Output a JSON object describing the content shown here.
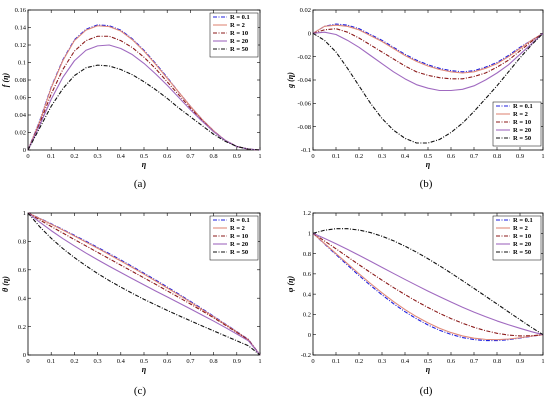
{
  "chart_data": [
    {
      "type": "line",
      "panel_label": "(a)",
      "xlabel": "η",
      "ylabel": "f (η)",
      "xlim": [
        0,
        1
      ],
      "ylim": [
        0,
        0.16
      ],
      "xticks": [
        0,
        0.1,
        0.2,
        0.3,
        0.4,
        0.5,
        0.6,
        0.7,
        0.8,
        0.9,
        1
      ],
      "xtick_labels": [
        "0",
        "0.1",
        "0.2",
        "0.3",
        "0.4",
        "0.5",
        "0.6",
        "0.7",
        "0.8",
        "0.9",
        "1"
      ],
      "yticks": [
        0,
        0.02,
        0.04,
        0.06,
        0.08,
        0.1,
        0.12,
        0.14,
        0.16
      ],
      "ytick_labels": [
        "0",
        "0.02",
        "0.04",
        "0.06",
        "0.08",
        "0.1",
        "0.12",
        "0.14",
        "0.16"
      ],
      "legend_position": "top-right",
      "x": [
        0,
        0.05,
        0.1,
        0.15,
        0.2,
        0.25,
        0.3,
        0.35,
        0.4,
        0.45,
        0.5,
        0.55,
        0.6,
        0.65,
        0.7,
        0.75,
        0.8,
        0.85,
        0.9,
        0.95,
        1
      ],
      "series": [
        {
          "name": "R = 0.1",
          "color": "#1f1fdd",
          "dash": "dashdot",
          "values": [
            0,
            0.033,
            0.072,
            0.103,
            0.126,
            0.138,
            0.143,
            0.142,
            0.137,
            0.127,
            0.114,
            0.099,
            0.083,
            0.066,
            0.05,
            0.035,
            0.022,
            0.011,
            0.004,
            0.001,
            0
          ]
        },
        {
          "name": "R = 2",
          "color": "#e08a7a",
          "dash": "solid",
          "values": [
            0,
            0.032,
            0.071,
            0.102,
            0.125,
            0.137,
            0.142,
            0.141,
            0.136,
            0.126,
            0.113,
            0.098,
            0.082,
            0.066,
            0.05,
            0.035,
            0.022,
            0.011,
            0.004,
            0.001,
            0
          ]
        },
        {
          "name": "R = 10",
          "color": "#8b1a1a",
          "dash": "dashdot",
          "values": [
            0,
            0.03,
            0.064,
            0.092,
            0.113,
            0.125,
            0.13,
            0.13,
            0.125,
            0.117,
            0.106,
            0.093,
            0.078,
            0.063,
            0.048,
            0.034,
            0.021,
            0.011,
            0.004,
            0.001,
            0
          ]
        },
        {
          "name": "R = 20",
          "color": "#a06ac0",
          "dash": "solid",
          "values": [
            0,
            0.028,
            0.058,
            0.083,
            0.102,
            0.114,
            0.119,
            0.12,
            0.116,
            0.109,
            0.099,
            0.087,
            0.074,
            0.06,
            0.046,
            0.033,
            0.021,
            0.011,
            0.004,
            0.001,
            0
          ]
        },
        {
          "name": "R = 50",
          "color": "#111111",
          "dash": "dashdot",
          "values": [
            0,
            0.025,
            0.05,
            0.07,
            0.085,
            0.094,
            0.097,
            0.096,
            0.092,
            0.086,
            0.078,
            0.069,
            0.059,
            0.048,
            0.038,
            0.028,
            0.018,
            0.01,
            0.004,
            0.001,
            0
          ]
        }
      ]
    },
    {
      "type": "line",
      "panel_label": "(b)",
      "xlabel": "η",
      "ylabel": "g (η)",
      "xlim": [
        0,
        1
      ],
      "ylim": [
        -0.1,
        0.02
      ],
      "xticks": [
        0,
        0.1,
        0.2,
        0.3,
        0.4,
        0.5,
        0.6,
        0.7,
        0.8,
        0.9,
        1
      ],
      "xtick_labels": [
        "0",
        "0.1",
        "0.2",
        "0.3",
        "0.4",
        "0.5",
        "0.6",
        "0.7",
        "0.8",
        "0.9",
        "1"
      ],
      "yticks": [
        -0.1,
        -0.08,
        -0.06,
        -0.04,
        -0.02,
        0,
        0.02
      ],
      "ytick_labels": [
        "-0.1",
        "-0.08",
        "-0.06",
        "-0.04",
        "-0.02",
        "0",
        "0.02"
      ],
      "legend_position": "bottom-right",
      "x": [
        0,
        0.05,
        0.1,
        0.15,
        0.2,
        0.25,
        0.3,
        0.35,
        0.4,
        0.45,
        0.5,
        0.55,
        0.6,
        0.65,
        0.7,
        0.75,
        0.8,
        0.85,
        0.9,
        0.95,
        1
      ],
      "series": [
        {
          "name": "R = 0.1",
          "color": "#1f1fdd",
          "dash": "dashdot",
          "values": [
            0,
            0.006,
            0.008,
            0.007,
            0.004,
            -0.001,
            -0.006,
            -0.012,
            -0.018,
            -0.023,
            -0.027,
            -0.03,
            -0.032,
            -0.033,
            -0.032,
            -0.029,
            -0.025,
            -0.019,
            -0.012,
            -0.006,
            0
          ]
        },
        {
          "name": "R = 2",
          "color": "#e08a7a",
          "dash": "solid",
          "values": [
            0,
            0.006,
            0.007,
            0.006,
            0.003,
            -0.002,
            -0.007,
            -0.013,
            -0.019,
            -0.024,
            -0.028,
            -0.031,
            -0.033,
            -0.034,
            -0.033,
            -0.03,
            -0.026,
            -0.02,
            -0.013,
            -0.006,
            0
          ]
        },
        {
          "name": "R = 10",
          "color": "#8b1a1a",
          "dash": "dashdot",
          "values": [
            0,
            0.003,
            0.004,
            0.001,
            -0.004,
            -0.01,
            -0.016,
            -0.022,
            -0.028,
            -0.033,
            -0.036,
            -0.038,
            -0.039,
            -0.039,
            -0.037,
            -0.034,
            -0.029,
            -0.023,
            -0.015,
            -0.007,
            0
          ]
        },
        {
          "name": "R = 20",
          "color": "#a06ac0",
          "dash": "solid",
          "values": [
            0,
            0.001,
            -0.001,
            -0.006,
            -0.012,
            -0.019,
            -0.026,
            -0.033,
            -0.039,
            -0.044,
            -0.047,
            -0.049,
            -0.049,
            -0.048,
            -0.045,
            -0.04,
            -0.034,
            -0.027,
            -0.018,
            -0.009,
            0
          ]
        },
        {
          "name": "R = 50",
          "color": "#111111",
          "dash": "dashdot",
          "values": [
            0,
            -0.006,
            -0.016,
            -0.03,
            -0.045,
            -0.06,
            -0.073,
            -0.083,
            -0.09,
            -0.094,
            -0.094,
            -0.091,
            -0.085,
            -0.077,
            -0.067,
            -0.056,
            -0.045,
            -0.033,
            -0.021,
            -0.01,
            0
          ]
        }
      ]
    },
    {
      "type": "line",
      "panel_label": "(c)",
      "xlabel": "η",
      "ylabel": "θ (η)",
      "xlim": [
        0,
        1
      ],
      "ylim": [
        0,
        1
      ],
      "xticks": [
        0,
        0.1,
        0.2,
        0.3,
        0.4,
        0.5,
        0.6,
        0.7,
        0.8,
        0.9,
        1
      ],
      "xtick_labels": [
        "0",
        "0.1",
        "0.2",
        "0.3",
        "0.4",
        "0.5",
        "0.6",
        "0.7",
        "0.8",
        "0.9",
        "1"
      ],
      "yticks": [
        0,
        0.2,
        0.4,
        0.6,
        0.8,
        1
      ],
      "ytick_labels": [
        "0",
        "0.2",
        "0.4",
        "0.6",
        "0.8",
        "1"
      ],
      "legend_position": "top-right",
      "x": [
        0,
        0.05,
        0.1,
        0.15,
        0.2,
        0.25,
        0.3,
        0.35,
        0.4,
        0.45,
        0.5,
        0.55,
        0.6,
        0.65,
        0.7,
        0.75,
        0.8,
        0.85,
        0.9,
        0.95,
        1
      ],
      "series": [
        {
          "name": "R = 0.1",
          "color": "#1f1fdd",
          "dash": "dashdot",
          "values": [
            1,
            0.963,
            0.924,
            0.884,
            0.843,
            0.801,
            0.758,
            0.714,
            0.669,
            0.623,
            0.576,
            0.528,
            0.479,
            0.429,
            0.378,
            0.326,
            0.273,
            0.219,
            0.165,
            0.11,
            0
          ]
        },
        {
          "name": "R = 2",
          "color": "#e08a7a",
          "dash": "solid",
          "values": [
            1,
            0.961,
            0.921,
            0.88,
            0.838,
            0.795,
            0.752,
            0.707,
            0.662,
            0.616,
            0.569,
            0.521,
            0.472,
            0.423,
            0.372,
            0.321,
            0.269,
            0.216,
            0.162,
            0.108,
            0
          ]
        },
        {
          "name": "R = 10",
          "color": "#8b1a1a",
          "dash": "dashdot",
          "values": [
            1,
            0.952,
            0.905,
            0.859,
            0.813,
            0.768,
            0.723,
            0.678,
            0.633,
            0.588,
            0.543,
            0.498,
            0.452,
            0.406,
            0.359,
            0.311,
            0.262,
            0.211,
            0.159,
            0.106,
            0
          ]
        },
        {
          "name": "R = 20",
          "color": "#a06ac0",
          "dash": "solid",
          "values": [
            1,
            0.936,
            0.876,
            0.82,
            0.768,
            0.718,
            0.671,
            0.625,
            0.581,
            0.537,
            0.494,
            0.451,
            0.409,
            0.367,
            0.325,
            0.282,
            0.239,
            0.194,
            0.148,
            0.1,
            0
          ]
        },
        {
          "name": "R = 50",
          "color": "#111111",
          "dash": "dashdot",
          "values": [
            1,
            0.904,
            0.822,
            0.75,
            0.686,
            0.628,
            0.574,
            0.524,
            0.478,
            0.434,
            0.392,
            0.353,
            0.314,
            0.277,
            0.241,
            0.205,
            0.17,
            0.135,
            0.1,
            0.065,
            0
          ]
        }
      ]
    },
    {
      "type": "line",
      "panel_label": "(d)",
      "xlabel": "η",
      "ylabel": "φ (η)",
      "xlim": [
        0,
        1
      ],
      "ylim": [
        -0.2,
        1.2
      ],
      "xticks": [
        0,
        0.1,
        0.2,
        0.3,
        0.4,
        0.5,
        0.6,
        0.7,
        0.8,
        0.9,
        1
      ],
      "xtick_labels": [
        "0",
        "0.1",
        "0.2",
        "0.3",
        "0.4",
        "0.5",
        "0.6",
        "0.7",
        "0.8",
        "0.9",
        "1"
      ],
      "yticks": [
        -0.2,
        0,
        0.2,
        0.4,
        0.6,
        0.8,
        1,
        1.2
      ],
      "ytick_labels": [
        "-0.2",
        "0",
        "0.2",
        "0.4",
        "0.6",
        "0.8",
        "1",
        "1.2"
      ],
      "legend_position": "top-right",
      "x": [
        0,
        0.05,
        0.1,
        0.15,
        0.2,
        0.25,
        0.3,
        0.35,
        0.4,
        0.45,
        0.5,
        0.55,
        0.6,
        0.65,
        0.7,
        0.75,
        0.8,
        0.85,
        0.9,
        0.95,
        1
      ],
      "series": [
        {
          "name": "R = 0.1",
          "color": "#1f1fdd",
          "dash": "dashdot",
          "values": [
            1,
            0.895,
            0.79,
            0.686,
            0.584,
            0.486,
            0.393,
            0.306,
            0.227,
            0.157,
            0.096,
            0.044,
            0.003,
            -0.028,
            -0.048,
            -0.058,
            -0.058,
            -0.049,
            -0.033,
            -0.015,
            0
          ]
        },
        {
          "name": "R = 2",
          "color": "#e08a7a",
          "dash": "solid",
          "values": [
            1,
            0.9,
            0.8,
            0.7,
            0.601,
            0.505,
            0.413,
            0.327,
            0.248,
            0.178,
            0.117,
            0.064,
            0.021,
            -0.012,
            -0.034,
            -0.046,
            -0.049,
            -0.043,
            -0.03,
            -0.014,
            0
          ]
        },
        {
          "name": "R = 10",
          "color": "#8b1a1a",
          "dash": "dashdot",
          "values": [
            1,
            0.925,
            0.847,
            0.768,
            0.69,
            0.613,
            0.538,
            0.465,
            0.396,
            0.33,
            0.268,
            0.211,
            0.159,
            0.113,
            0.073,
            0.04,
            0.014,
            -0.004,
            -0.012,
            -0.01,
            0
          ]
        },
        {
          "name": "R = 20",
          "color": "#a06ac0",
          "dash": "solid",
          "values": [
            1,
            0.95,
            0.897,
            0.841,
            0.783,
            0.724,
            0.664,
            0.604,
            0.545,
            0.487,
            0.43,
            0.375,
            0.322,
            0.271,
            0.223,
            0.178,
            0.136,
            0.098,
            0.063,
            0.03,
            0
          ]
        },
        {
          "name": "R = 50",
          "color": "#111111",
          "dash": "dashdot",
          "values": [
            1,
            1.03,
            1.045,
            1.045,
            1.032,
            1.007,
            0.971,
            0.926,
            0.873,
            0.814,
            0.749,
            0.68,
            0.608,
            0.533,
            0.457,
            0.38,
            0.303,
            0.225,
            0.148,
            0.072,
            0
          ]
        }
      ]
    }
  ]
}
